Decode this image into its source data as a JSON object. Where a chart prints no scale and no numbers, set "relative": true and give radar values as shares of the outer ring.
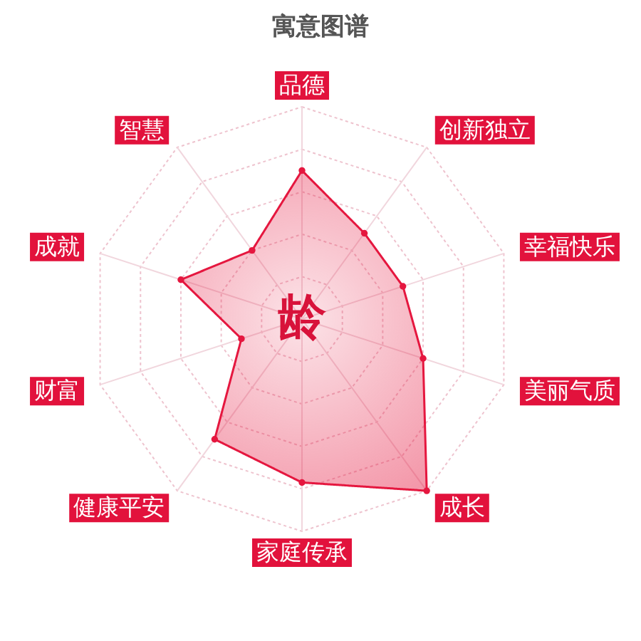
{
  "chart_data": {
    "type": "radar",
    "title": "寓意图谱",
    "categories": [
      "品德",
      "创新独立",
      "幸福快乐",
      "美丽气质",
      "成长",
      "家庭传承",
      "健康平安",
      "财富",
      "成就",
      "智慧"
    ],
    "relative": true,
    "series": [
      {
        "color": "#e5173f",
        "values": [
          0.7,
          0.5,
          0.5,
          0.6,
          1.0,
          0.77,
          0.7,
          0.3,
          0.6,
          0.4
        ]
      }
    ],
    "annotations": [
      "龄"
    ],
    "marker": "circle",
    "line_style": "solid",
    "grid": true
  }
}
